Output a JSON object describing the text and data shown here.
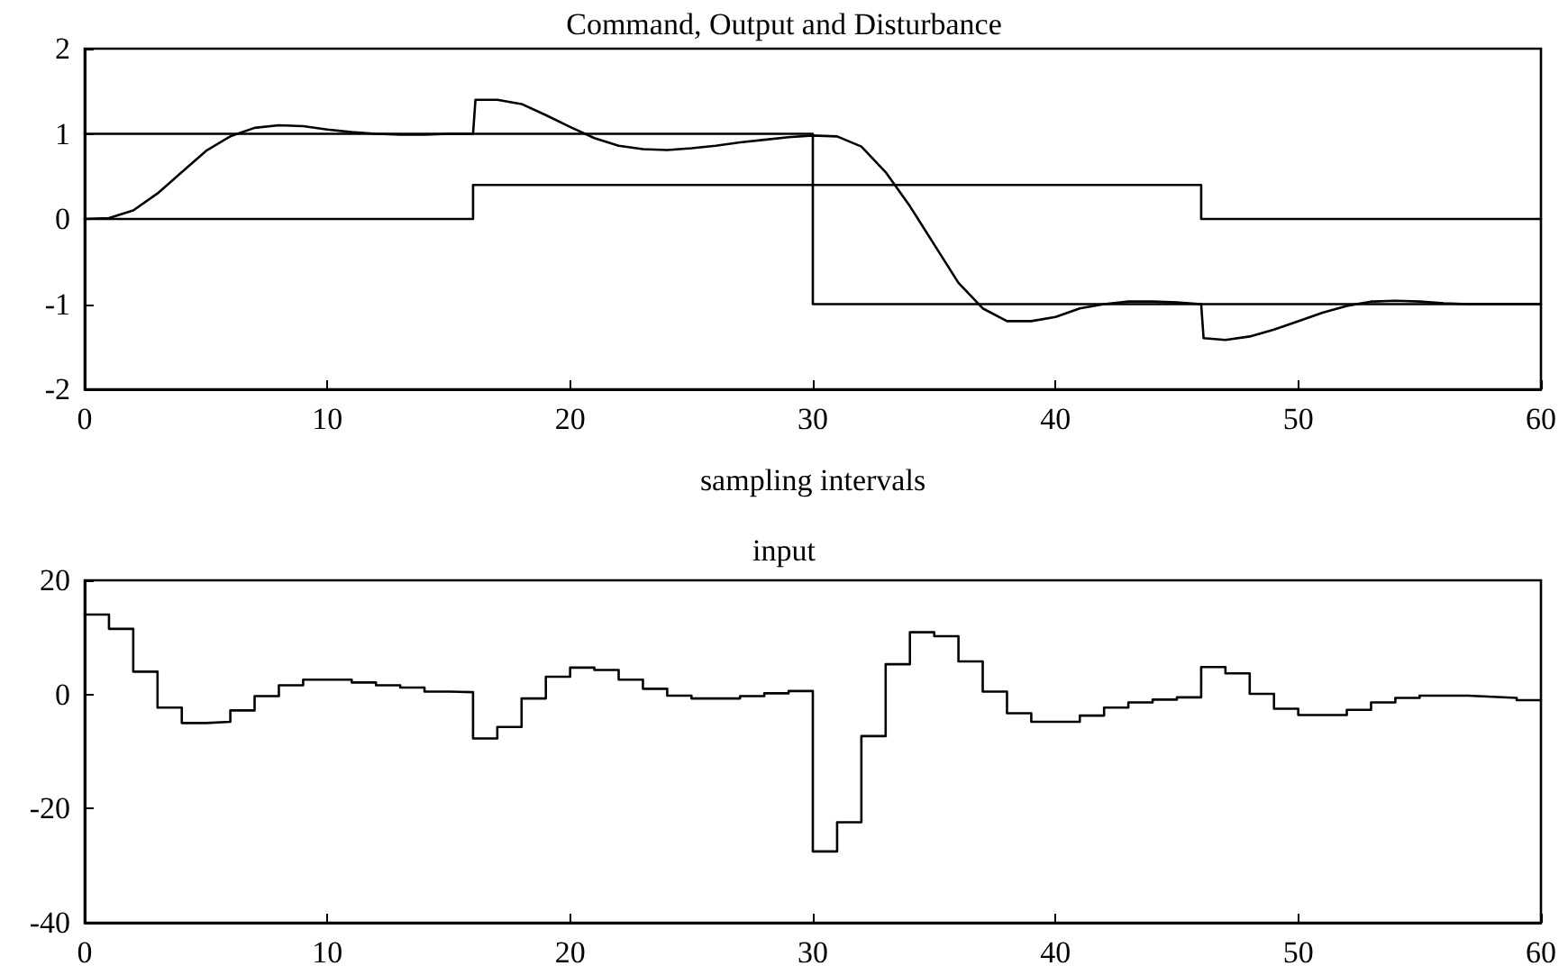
{
  "chart_data": [
    {
      "type": "line",
      "title": "Command, Output and Disturbance",
      "xlabel": "sampling intervals",
      "xlim": [
        0,
        60
      ],
      "xticks": [
        0,
        10,
        20,
        30,
        40,
        50,
        60
      ],
      "ylim": [
        -2,
        2
      ],
      "yticks": [
        -2,
        -1,
        0,
        1,
        2
      ],
      "grid": false,
      "marker": "none",
      "line_style": "solid",
      "series": [
        {
          "type": "step",
          "color": "#000000",
          "x": [
            0,
            30,
            60
          ],
          "values": [
            1,
            -1,
            -1
          ]
        },
        {
          "type": "step",
          "color": "#000000",
          "x": [
            0,
            16,
            46,
            60
          ],
          "values": [
            0,
            0.4,
            0,
            0
          ]
        },
        {
          "color": "#000000",
          "x": [
            0,
            1,
            2,
            3,
            4,
            5,
            6,
            7,
            8,
            9,
            10,
            11,
            12,
            13,
            14,
            15,
            16,
            16.1,
            17,
            18,
            19,
            20,
            21,
            22,
            23,
            24,
            25,
            26,
            27,
            28,
            29,
            30,
            31,
            32,
            33,
            34,
            35,
            36,
            37,
            38,
            39,
            40,
            41,
            42,
            43,
            44,
            45,
            46,
            46.1,
            47,
            48,
            49,
            50,
            51,
            52,
            53,
            54,
            55,
            56,
            57,
            60
          ],
          "values": [
            0,
            0.01,
            0.1,
            0.3,
            0.55,
            0.8,
            0.97,
            1.07,
            1.1,
            1.09,
            1.05,
            1.02,
            1.0,
            0.99,
            0.99,
            1.0,
            1.0,
            1.4,
            1.4,
            1.35,
            1.22,
            1.08,
            0.95,
            0.86,
            0.82,
            0.81,
            0.83,
            0.86,
            0.9,
            0.93,
            0.96,
            0.98,
            0.97,
            0.85,
            0.55,
            0.15,
            -0.3,
            -0.75,
            -1.05,
            -1.2,
            -1.2,
            -1.15,
            -1.05,
            -1.0,
            -0.97,
            -0.97,
            -0.98,
            -1.0,
            -1.4,
            -1.42,
            -1.38,
            -1.3,
            -1.2,
            -1.1,
            -1.02,
            -0.97,
            -0.96,
            -0.97,
            -0.99,
            -1.0,
            -1.0
          ]
        }
      ]
    },
    {
      "type": "step",
      "title": "input",
      "xlim": [
        0,
        60
      ],
      "xticks": [
        0,
        10,
        20,
        30,
        40,
        50,
        60
      ],
      "ylim": [
        -40,
        20
      ],
      "yticks": [
        -40,
        -20,
        0,
        20
      ],
      "grid": false,
      "marker": "none",
      "line_style": "solid",
      "series": [
        {
          "color": "#000000",
          "x": [
            0,
            1,
            2,
            3,
            4,
            5,
            6,
            7,
            8,
            9,
            10,
            11,
            12,
            13,
            14,
            15,
            16,
            17,
            18,
            19,
            20,
            21,
            22,
            23,
            24,
            25,
            26,
            27,
            28,
            29,
            30,
            31,
            32,
            33,
            34,
            35,
            36,
            37,
            38,
            39,
            40,
            41,
            42,
            43,
            44,
            45,
            46,
            47,
            48,
            49,
            50,
            51,
            52,
            53,
            54,
            55,
            56,
            57,
            58,
            59,
            60
          ],
          "values": [
            14,
            11.5,
            4,
            -2.3,
            -5,
            -4.8,
            -2.8,
            -0.3,
            1.6,
            2.6,
            2.6,
            2.1,
            1.6,
            1.2,
            0.5,
            0.4,
            -7.7,
            -5.7,
            -0.7,
            3.1,
            4.7,
            4.3,
            2.6,
            1,
            -0.2,
            -0.7,
            -0.7,
            -0.3,
            0.2,
            0.6,
            -27.5,
            -22.4,
            -7.3,
            5.3,
            10.9,
            10.2,
            5.8,
            0.5,
            -3.3,
            -4.8,
            -4.8,
            -3.7,
            -2.3,
            -1.4,
            -0.9,
            -0.5,
            4.8,
            3.7,
            0.1,
            -2.5,
            -3.6,
            -3.6,
            -2.7,
            -1.4,
            -0.6,
            -0.2,
            -0.2,
            -0.4,
            -0.6,
            -1,
            -1
          ]
        }
      ]
    }
  ]
}
